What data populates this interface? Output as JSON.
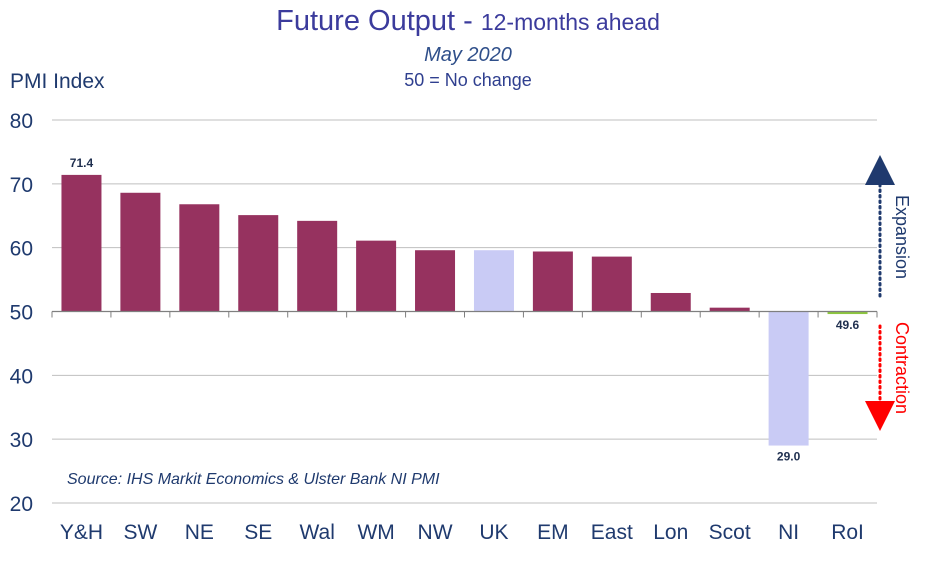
{
  "chart_data": {
    "type": "bar",
    "title": "Future Output - ",
    "title_suffix": "12-months ahead",
    "subtitle": "May 2020",
    "note": "50 = No change",
    "ylabel": "PMI Index",
    "xlabel": "",
    "ylim": [
      20,
      80
    ],
    "yticks": [
      "20",
      "30",
      "40",
      "50",
      "60",
      "70",
      "80"
    ],
    "baseline": 50,
    "categories": [
      "Y&H",
      "SW",
      "NE",
      "SE",
      "Wal",
      "WM",
      "NW",
      "UK",
      "EM",
      "East",
      "Lon",
      "Scot",
      "NI",
      "RoI"
    ],
    "values": [
      71.4,
      68.6,
      66.8,
      65.1,
      64.2,
      61.1,
      59.6,
      59.6,
      59.4,
      58.6,
      52.9,
      50.6,
      29.0,
      49.6
    ],
    "data_labels": [
      {
        "category": "Y&H",
        "text": "71.4"
      },
      {
        "category": "NI",
        "text": "29.0"
      },
      {
        "category": "RoI",
        "text": "49.6"
      }
    ],
    "grid": true,
    "source": "Source: IHS Markit Economics & Ulster Bank NI PMI",
    "annotations": {
      "expansion": "Expansion",
      "contraction": "Contraction"
    },
    "colors": {
      "regions": "#96325f",
      "uk_ni": "#c9cbf5",
      "roi": "#8dc63f",
      "axis_text": "#1f3a6e",
      "grid": "#bfbfbf",
      "expansion_arrow": "#1f3a6e",
      "contraction_arrow": "#ff0000",
      "title": "#3b3b9c"
    },
    "bar_color_keys": [
      "regions",
      "regions",
      "regions",
      "regions",
      "regions",
      "regions",
      "regions",
      "uk_ni",
      "regions",
      "regions",
      "regions",
      "regions",
      "uk_ni",
      "roi"
    ]
  }
}
